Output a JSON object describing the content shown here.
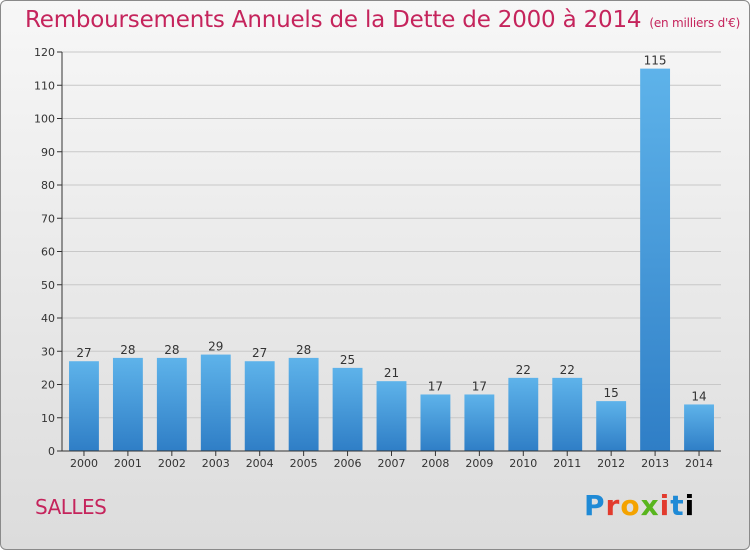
{
  "header": {
    "title": "Remboursements Annuels de la Dette de 2000 à 2014",
    "unit": "(en milliers d'€)"
  },
  "footer": {
    "commune": "SALLES",
    "logo_text": "Proxiti"
  },
  "colors": {
    "title": "#c5245c",
    "bar_top": "#5eb3ea",
    "bar_bottom": "#2f7ec6",
    "axis": "#333333",
    "grid": "#c8c8c8"
  },
  "chart_data": {
    "type": "bar",
    "title": "Remboursements Annuels de la Dette de 2000 à 2014",
    "xlabel": "",
    "ylabel": "",
    "ylim": [
      0,
      120
    ],
    "yticks": [
      0,
      10,
      20,
      30,
      40,
      50,
      60,
      70,
      80,
      90,
      100,
      110,
      120
    ],
    "grid": true,
    "categories": [
      "2000",
      "2001",
      "2002",
      "2003",
      "2004",
      "2005",
      "2006",
      "2007",
      "2008",
      "2009",
      "2010",
      "2011",
      "2012",
      "2013",
      "2014"
    ],
    "values": [
      27,
      28,
      28,
      29,
      27,
      28,
      25,
      21,
      17,
      17,
      22,
      22,
      15,
      115,
      14
    ]
  }
}
